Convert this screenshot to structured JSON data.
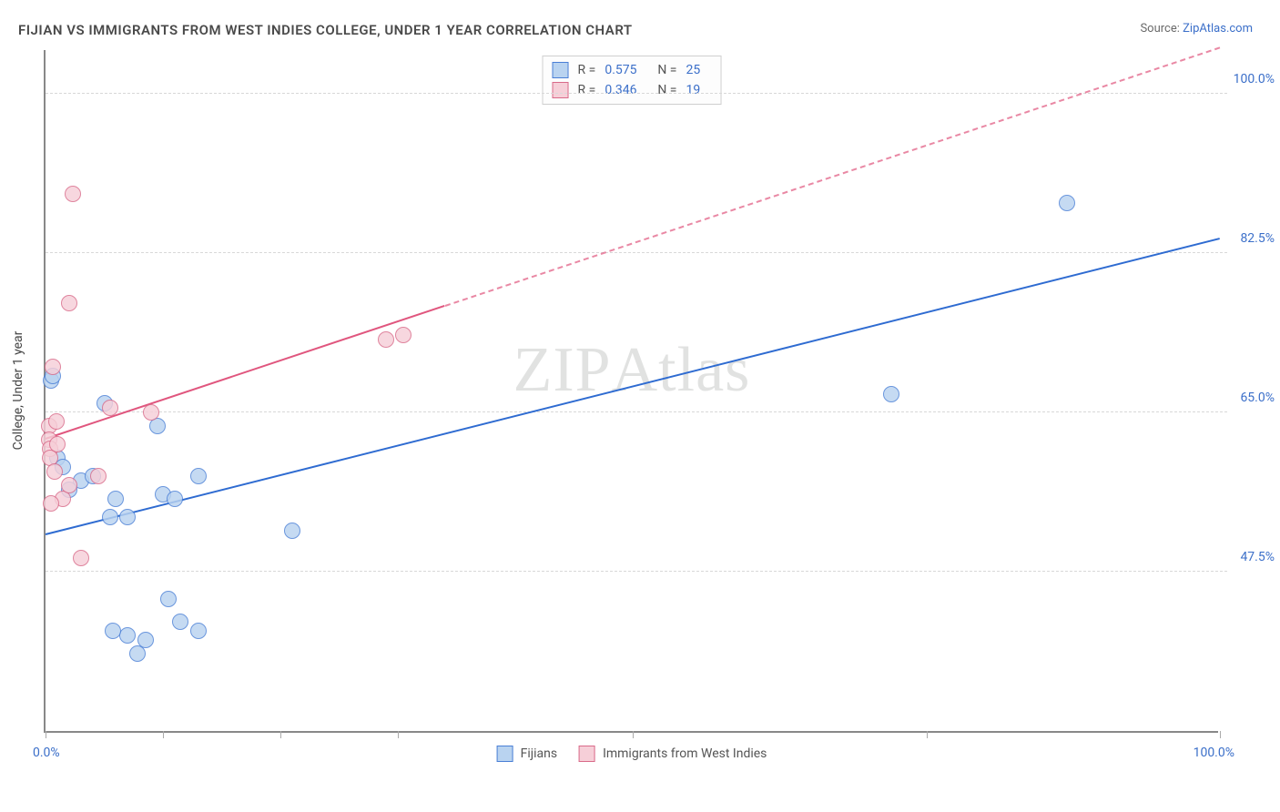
{
  "title": "FIJIAN VS IMMIGRANTS FROM WEST INDIES COLLEGE, UNDER 1 YEAR CORRELATION CHART",
  "source_label": "Source:",
  "source_name": "ZipAtlas.com",
  "watermark_a": "ZIP",
  "watermark_b": "Atlas",
  "y_axis_title": "College, Under 1 year",
  "chart": {
    "type": "scatter",
    "xlim": [
      0,
      100
    ],
    "ylim": [
      30,
      105
    ],
    "x_tick_positions": [
      0,
      10,
      20,
      30,
      50,
      75,
      100
    ],
    "x_label_min": "0.0%",
    "x_label_max": "100.0%",
    "y_gridlines": [
      47.5,
      65.0,
      82.5,
      100.0
    ],
    "y_tick_labels": [
      "47.5%",
      "65.0%",
      "82.5%",
      "100.0%"
    ],
    "background_color": "#ffffff",
    "grid_color": "#d8d8d8",
    "axis_color": "#888888",
    "marker_radius": 9,
    "marker_stroke_width": 1.2,
    "trendline_width": 2.5,
    "trendline_dash": "6,5"
  },
  "series": [
    {
      "id": "fijians",
      "label": "Fijians",
      "fill": "#b9d3f0",
      "stroke": "#4a7fd6",
      "line_color": "#2e6bd1",
      "r_value": "0.575",
      "n_value": "25",
      "points": [
        [
          0.5,
          68.5
        ],
        [
          0.6,
          69.0
        ],
        [
          1.0,
          60.0
        ],
        [
          1.5,
          59.0
        ],
        [
          5.0,
          66.0
        ],
        [
          3.0,
          57.5
        ],
        [
          4.0,
          58.0
        ],
        [
          5.5,
          53.5
        ],
        [
          6.0,
          55.5
        ],
        [
          7.0,
          53.5
        ],
        [
          9.5,
          63.5
        ],
        [
          10.0,
          56.0
        ],
        [
          11.0,
          55.5
        ],
        [
          13.0,
          58.0
        ],
        [
          21.0,
          52.0
        ],
        [
          10.5,
          44.5
        ],
        [
          11.5,
          42.0
        ],
        [
          7.0,
          40.5
        ],
        [
          7.8,
          38.5
        ],
        [
          8.5,
          40.0
        ],
        [
          5.7,
          41.0
        ],
        [
          13.0,
          41.0
        ],
        [
          2.0,
          56.5
        ],
        [
          72.0,
          67.0
        ],
        [
          87.0,
          88.0
        ]
      ],
      "trend": {
        "x1": 0,
        "y1": 51.5,
        "x2": 100,
        "y2": 84.0,
        "solid_until_x": 100
      }
    },
    {
      "id": "west_indies",
      "label": "Immigrants from West Indies",
      "fill": "#f6cfd8",
      "stroke": "#d96a89",
      "line_color": "#e0567e",
      "r_value": "0.346",
      "n_value": "19",
      "points": [
        [
          0.3,
          63.5
        ],
        [
          0.3,
          62.0
        ],
        [
          0.4,
          61.0
        ],
        [
          0.4,
          60.0
        ],
        [
          0.6,
          70.0
        ],
        [
          0.8,
          58.5
        ],
        [
          0.9,
          64.0
        ],
        [
          1.0,
          61.5
        ],
        [
          1.5,
          55.5
        ],
        [
          2.0,
          57.0
        ],
        [
          3.0,
          49.0
        ],
        [
          4.5,
          58.0
        ],
        [
          5.5,
          65.5
        ],
        [
          2.0,
          77.0
        ],
        [
          2.3,
          89.0
        ],
        [
          9.0,
          65.0
        ],
        [
          29.0,
          73.0
        ],
        [
          30.5,
          73.5
        ],
        [
          0.5,
          55.0
        ]
      ],
      "trend": {
        "x1": 0,
        "y1": 62.0,
        "x2": 100,
        "y2": 105.0,
        "solid_until_x": 34
      }
    }
  ],
  "stats_legend_labels": {
    "R": "R =",
    "N": "N ="
  }
}
